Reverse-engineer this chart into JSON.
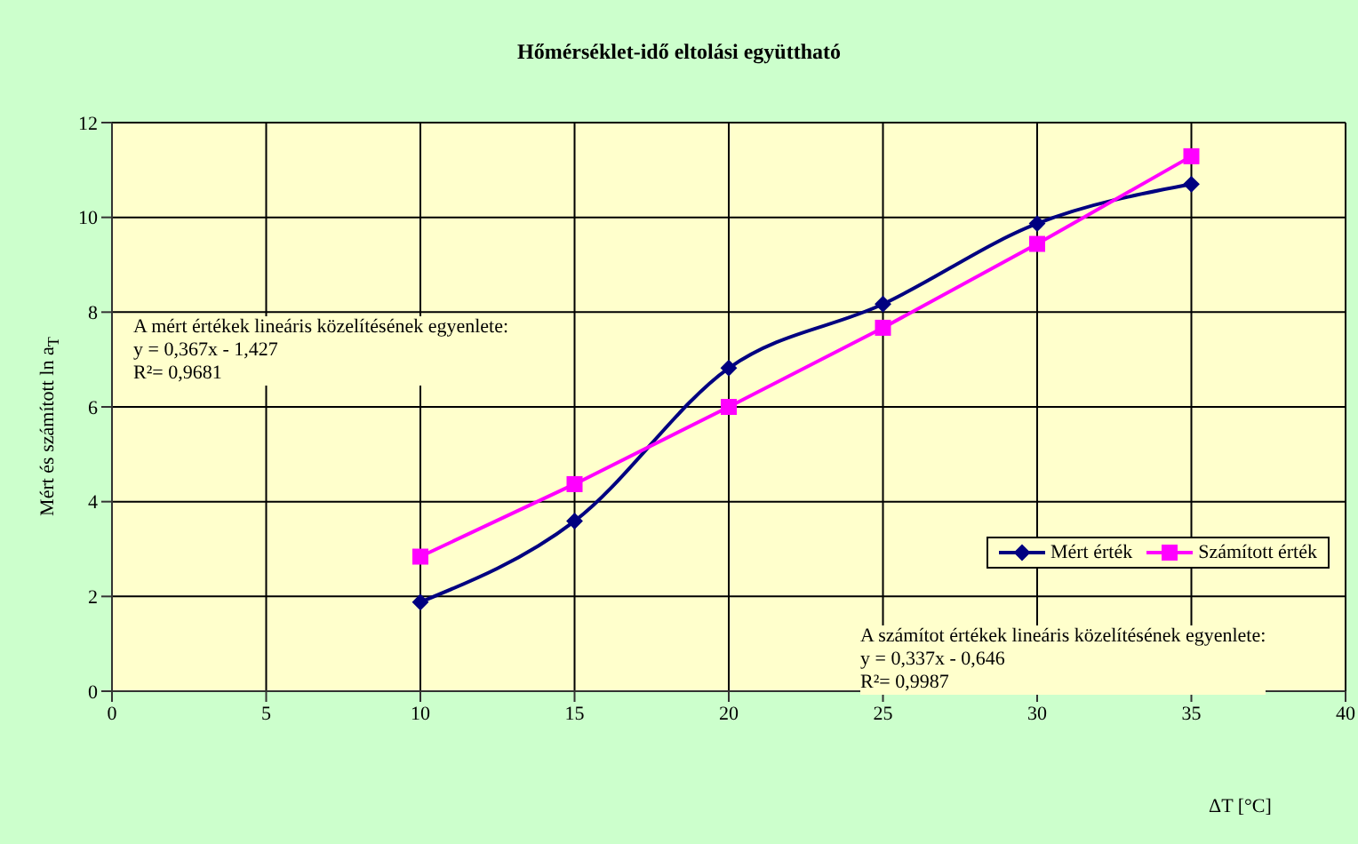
{
  "chart_data": {
    "type": "line",
    "title": "Hőmérséklet-idő eltolási együttható",
    "xlabel": "ΔT [°C]",
    "ylabel": "Mért és számított ln a$_{T}$",
    "x": [
      10,
      15,
      20,
      25,
      30,
      35
    ],
    "series": [
      {
        "name": "Mért érték",
        "color": "#000080",
        "marker": "diamond",
        "values": [
          1.88,
          3.59,
          6.82,
          8.17,
          9.87,
          10.7
        ]
      },
      {
        "name": "Számított érték",
        "color": "#ff00ff",
        "marker": "square",
        "values": [
          2.84,
          4.37,
          6.0,
          7.67,
          9.44,
          11.29
        ]
      }
    ],
    "xlim": [
      0,
      40
    ],
    "xticks": [
      0,
      5,
      10,
      15,
      20,
      25,
      30,
      35,
      40
    ],
    "ylim": [
      0,
      12
    ],
    "yticks": [
      0,
      2,
      4,
      6,
      8,
      10,
      12
    ],
    "grid": true,
    "legend": "right",
    "annotations": [
      "A mért értékek lineáris közelítésének egyenlete:\ny = 0,367x - 1,427\nR²= 0,9681",
      "A számítot értékek lineáris közelítésének egyenlete:\ny = 0,337x - 0,646\nR²= 0,9987"
    ]
  }
}
